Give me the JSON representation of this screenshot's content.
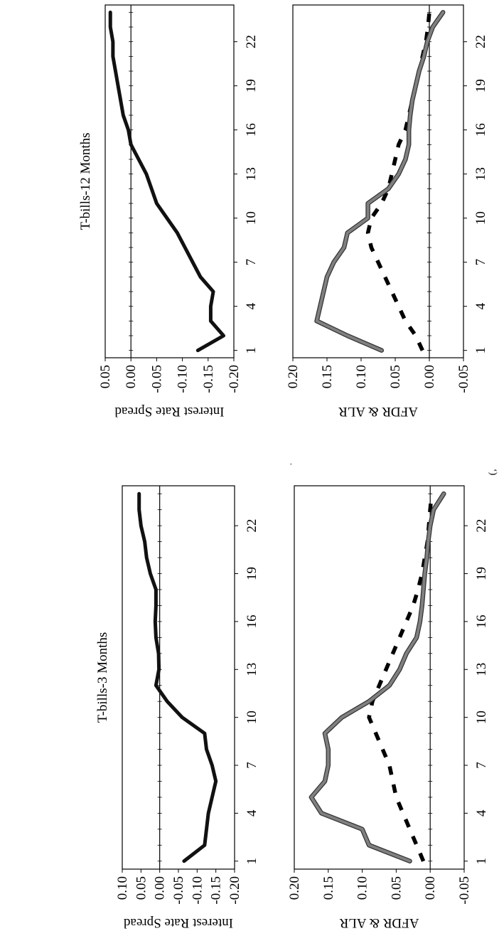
{
  "figure": {
    "stray_mark": "ʻ)",
    "stray_dot": "."
  },
  "chart_data": [
    {
      "id": "tb3-spread",
      "type": "line",
      "title": "T-bills-3 Months",
      "ylabel": "Interest Rate Spread",
      "xlabel": "",
      "ylim": [
        -0.2,
        0.1
      ],
      "y_ticks": [
        "0.10",
        "0.05",
        "0.00",
        "-0.05",
        "-0.10",
        "-0.15",
        "-0.20"
      ],
      "y_tick_values": [
        0.1,
        0.05,
        0.0,
        -0.05,
        -0.1,
        -0.15,
        -0.2
      ],
      "xlim": [
        0.5,
        24.5
      ],
      "x_ticks": [
        "1",
        "4",
        "7",
        "10",
        "13",
        "16",
        "19",
        "22"
      ],
      "x_tick_values": [
        1,
        4,
        7,
        10,
        13,
        16,
        19,
        22
      ],
      "x": [
        1,
        2,
        3,
        4,
        5,
        6,
        7,
        8,
        9,
        10,
        11,
        12,
        13,
        14,
        15,
        16,
        17,
        18,
        19,
        20,
        21,
        22,
        23,
        24
      ],
      "zero_line": true,
      "series": [
        {
          "values": [
            -0.065,
            -0.12,
            -0.125,
            -0.13,
            -0.14,
            -0.15,
            -0.14,
            -0.125,
            -0.12,
            -0.06,
            -0.02,
            0.01,
            0.002,
            0.003,
            0.01,
            0.012,
            0.01,
            0.01,
            0.025,
            0.035,
            0.04,
            0.05,
            0.055,
            0.055
          ],
          "color": "#111111",
          "style": "solid"
        }
      ]
    },
    {
      "id": "tb3-afdr",
      "type": "line",
      "ylabel": "AFDR & ALR",
      "xlabel": "",
      "ylim": [
        -0.05,
        0.2
      ],
      "y_ticks": [
        "0.20",
        "0.15",
        "0.10",
        "0.05",
        "0.00",
        "-0.05"
      ],
      "y_tick_values": [
        0.2,
        0.15,
        0.1,
        0.05,
        0.0,
        -0.05
      ],
      "xlim": [
        0.5,
        24.5
      ],
      "x_ticks": [
        "1",
        "4",
        "7",
        "10",
        "13",
        "16",
        "19",
        "22"
      ],
      "x_tick_values": [
        1,
        4,
        7,
        10,
        13,
        16,
        19,
        22
      ],
      "x": [
        1,
        2,
        3,
        4,
        5,
        6,
        7,
        8,
        9,
        10,
        11,
        12,
        13,
        14,
        15,
        16,
        17,
        18,
        19,
        20,
        21,
        22,
        23,
        24
      ],
      "zero_line": true,
      "series": [
        {
          "values": [
            0.01,
            0.02,
            0.03,
            0.04,
            0.05,
            0.055,
            0.06,
            0.07,
            0.08,
            0.09,
            0.085,
            0.075,
            0.065,
            0.055,
            0.045,
            0.035,
            0.025,
            0.018,
            0.012,
            0.008,
            0.004,
            0.002,
            0.0,
            -0.002
          ],
          "color": "#000000",
          "style": "dashed"
        },
        {
          "values": [
            0.03,
            0.09,
            0.1,
            0.16,
            0.175,
            0.155,
            0.15,
            0.15,
            0.155,
            0.13,
            0.09,
            0.06,
            0.045,
            0.035,
            0.02,
            0.015,
            0.012,
            0.01,
            0.008,
            0.005,
            0.003,
            0.0,
            -0.005,
            -0.02
          ],
          "color": "#808080",
          "style": "solid-outlined"
        }
      ]
    },
    {
      "id": "tb12-spread",
      "type": "line",
      "title": "T-bills-12 Months",
      "ylabel": "Interest Rate Spread",
      "xlabel": "",
      "ylim": [
        -0.2,
        0.05
      ],
      "y_ticks": [
        "0.05",
        "0.00",
        "-0.05",
        "-0.10",
        "-0.15",
        "-0.20"
      ],
      "y_tick_values": [
        0.05,
        0.0,
        -0.05,
        -0.1,
        -0.15,
        -0.2
      ],
      "xlim": [
        0.5,
        24.5
      ],
      "x_ticks": [
        "1",
        "4",
        "7",
        "10",
        "13",
        "16",
        "19",
        "22"
      ],
      "x_tick_values": [
        1,
        4,
        7,
        10,
        13,
        16,
        19,
        22
      ],
      "x_tick_notes": "19 and 22 appear partially cut off in the original",
      "x": [
        1,
        2,
        3,
        4,
        5,
        6,
        7,
        8,
        9,
        10,
        11,
        12,
        13,
        14,
        15,
        16,
        17,
        18,
        19,
        20,
        21,
        22,
        23,
        24
      ],
      "zero_line": true,
      "series": [
        {
          "values": [
            -0.13,
            -0.18,
            -0.155,
            -0.155,
            -0.16,
            -0.135,
            -0.12,
            -0.105,
            -0.09,
            -0.07,
            -0.05,
            -0.04,
            -0.03,
            -0.015,
            0.0,
            0.005,
            0.015,
            0.02,
            0.025,
            0.03,
            0.035,
            0.035,
            0.04,
            0.04
          ],
          "color": "#111111",
          "style": "solid"
        }
      ]
    },
    {
      "id": "tb12-afdr",
      "type": "line",
      "ylabel": "AFDR & ALR",
      "xlabel": "",
      "ylim": [
        -0.05,
        0.2
      ],
      "y_ticks": [
        "0.20",
        "0.15",
        "0.10",
        "0.05",
        "0.00",
        "-0.05"
      ],
      "y_tick_values": [
        0.2,
        0.15,
        0.1,
        0.05,
        0.0,
        -0.05
      ],
      "xlim": [
        0.5,
        24.5
      ],
      "x_ticks": [
        "1",
        "4",
        "7",
        "10",
        "13",
        "16",
        "19",
        "22"
      ],
      "x_tick_values": [
        1,
        4,
        7,
        10,
        13,
        16,
        19,
        22
      ],
      "x": [
        1,
        2,
        3,
        4,
        5,
        6,
        7,
        8,
        9,
        10,
        11,
        12,
        13,
        14,
        15,
        16,
        17,
        18,
        19,
        20,
        21,
        22,
        23,
        24
      ],
      "zero_line": true,
      "series": [
        {
          "values": [
            0.01,
            0.02,
            0.035,
            0.045,
            0.055,
            0.065,
            0.075,
            0.085,
            0.09,
            0.085,
            0.07,
            0.06,
            0.055,
            0.05,
            0.045,
            0.035,
            0.03,
            0.025,
            0.02,
            0.015,
            0.01,
            0.005,
            0.002,
            0.0
          ],
          "color": "#000000",
          "style": "dashed"
        },
        {
          "values": [
            0.07,
            0.12,
            0.165,
            0.16,
            0.155,
            0.15,
            0.14,
            0.125,
            0.12,
            0.09,
            0.09,
            0.06,
            0.045,
            0.035,
            0.03,
            0.03,
            0.028,
            0.025,
            0.02,
            0.015,
            0.008,
            0.003,
            -0.005,
            -0.02
          ],
          "color": "#808080",
          "style": "solid-outlined"
        }
      ]
    }
  ]
}
